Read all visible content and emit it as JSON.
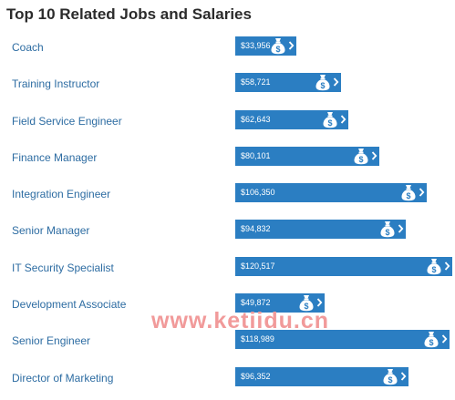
{
  "title": "Top 10 Related Jobs and Salaries",
  "chart_data": {
    "type": "bar",
    "categories": [
      "Coach",
      "Training Instructor",
      "Field Service Engineer",
      "Finance Manager",
      "Integration Engineer",
      "Senior Manager",
      "IT Security Specialist",
      "Development Associate",
      "Senior Engineer",
      "Director of Marketing"
    ],
    "values": [
      33956,
      58721,
      62643,
      80101,
      106350,
      94832,
      120517,
      49872,
      118989,
      96352
    ],
    "value_labels": [
      "$33,956",
      "$58,721",
      "$62,643",
      "$80,101",
      "$106,350",
      "$94,832",
      "$120,517",
      "$49,872",
      "$118,989",
      "$96,352"
    ],
    "bar_color": "#2b7ec2",
    "title": "Top 10 Related Jobs and Salaries"
  },
  "icons": {
    "bar_icon": "money-bag-icon",
    "bar_arrow": "chevron-right-icon"
  },
  "colors": {
    "link": "#2d6ca2",
    "bar": "#2b7ec2"
  },
  "watermark": "www.ketiidu.cn"
}
